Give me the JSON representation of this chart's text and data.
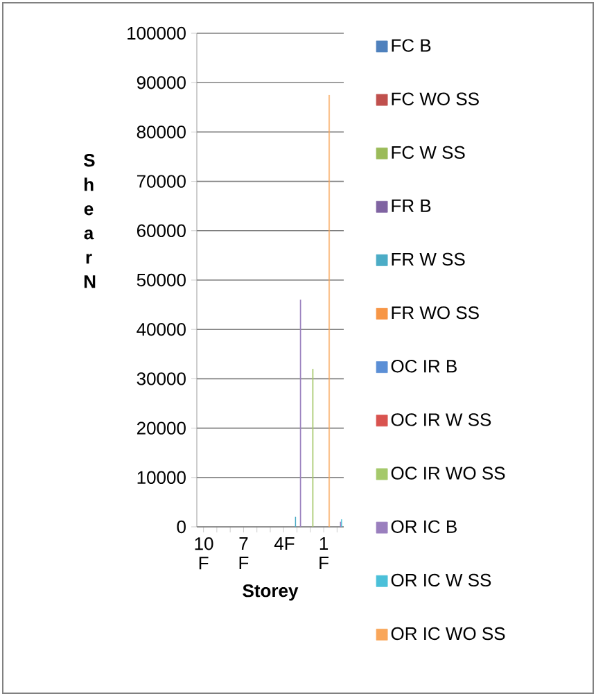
{
  "chart_data": {
    "type": "bar",
    "xlabel": "Storey",
    "ylabel": "S h e a r N",
    "categories": [
      "10 F",
      null,
      null,
      "7 F",
      null,
      null,
      "4F",
      null,
      null,
      "1 F",
      null
    ],
    "ylim": [
      0,
      100000
    ],
    "yticks": [
      0,
      10000,
      20000,
      30000,
      40000,
      50000,
      60000,
      70000,
      80000,
      90000,
      100000
    ],
    "grid": "y",
    "legend": "right",
    "series": [
      {
        "name": "FC B",
        "color": "#4f81bd",
        "values": [
          null,
          null,
          null,
          null,
          null,
          null,
          null,
          null,
          null,
          null,
          null
        ]
      },
      {
        "name": "FC WO SS",
        "color": "#c0504d",
        "values": [
          null,
          null,
          null,
          null,
          null,
          null,
          null,
          null,
          null,
          null,
          null
        ]
      },
      {
        "name": "FC W SS",
        "color": "#9bbb59",
        "values": [
          null,
          null,
          null,
          null,
          null,
          null,
          null,
          null,
          null,
          null,
          null
        ]
      },
      {
        "name": "FR B",
        "color": "#8064a2",
        "values": [
          null,
          null,
          null,
          null,
          null,
          null,
          null,
          null,
          null,
          null,
          null
        ]
      },
      {
        "name": "FR W SS",
        "color": "#4bacc6",
        "values": [
          null,
          null,
          null,
          null,
          null,
          null,
          null,
          2000,
          null,
          null,
          null
        ]
      },
      {
        "name": "FR WO SS",
        "color": "#f79646",
        "values": [
          null,
          null,
          null,
          null,
          null,
          null,
          null,
          null,
          null,
          null,
          null
        ]
      },
      {
        "name": "OC IR B",
        "color": "#5b8fd6",
        "values": [
          null,
          null,
          null,
          null,
          null,
          null,
          null,
          null,
          null,
          null,
          null
        ]
      },
      {
        "name": "OC IR W SS",
        "color": "#d9534f",
        "values": [
          null,
          null,
          null,
          null,
          null,
          null,
          null,
          null,
          null,
          null,
          null
        ]
      },
      {
        "name": "OC IR WO SS",
        "color": "#a5c96b",
        "values": [
          null,
          null,
          null,
          null,
          null,
          null,
          null,
          null,
          32000,
          null,
          null
        ]
      },
      {
        "name": "OR IC B",
        "color": "#9a7fbe",
        "values": [
          null,
          null,
          null,
          null,
          null,
          null,
          null,
          46000,
          null,
          null,
          1000
        ]
      },
      {
        "name": "OR IC W SS",
        "color": "#4bc0d9",
        "values": [
          null,
          null,
          null,
          null,
          null,
          null,
          null,
          null,
          null,
          null,
          1500
        ]
      },
      {
        "name": "OR IC WO SS",
        "color": "#f9a65a",
        "values": [
          null,
          null,
          null,
          null,
          null,
          null,
          null,
          null,
          null,
          87500,
          null
        ]
      }
    ]
  }
}
